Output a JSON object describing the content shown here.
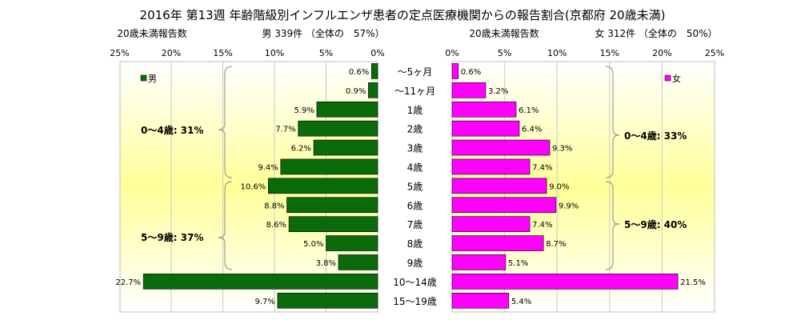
{
  "colors": {
    "male": "#0b6b0b",
    "female": "#ff00ff",
    "grid": "#c8c8c8",
    "panel_edge": "#ffffff",
    "panel_center": "#ffff99"
  },
  "chart_data": {
    "type": "bar",
    "orientation": "horizontal-butterfly",
    "title": "2016年 第13週 年齢階級別インフルエンザ患者の定点医療機関からの報告割合(京都府 20歳未満)",
    "categories": [
      "〜5ヶ月",
      "〜11ヶ月",
      "1歳",
      "2歳",
      "3歳",
      "4歳",
      "5歳",
      "6歳",
      "7歳",
      "8歳",
      "9歳",
      "10〜14歳",
      "15〜19歳"
    ],
    "series": [
      {
        "name": "男",
        "header_label": "20歳未満報告数",
        "header_summary": "男 339件 （全体の　57%）",
        "values": [
          0.6,
          0.9,
          5.9,
          7.7,
          6.2,
          9.4,
          10.6,
          8.8,
          8.6,
          5.0,
          3.8,
          22.7,
          9.7
        ],
        "labels": [
          "0.6%",
          "0.9%",
          "5.9%",
          "7.7%",
          "6.2%",
          "9.4%",
          "10.6%",
          "8.8%",
          "8.6%",
          "5.0%",
          "3.8%",
          "22.7%",
          "9.7%"
        ]
      },
      {
        "name": "女",
        "header_label": "20歳未満報告数",
        "header_summary": "女 312件 （全体の　50%）",
        "values": [
          0.6,
          3.2,
          6.1,
          6.4,
          9.3,
          7.4,
          9.0,
          9.9,
          7.4,
          8.7,
          5.1,
          21.5,
          5.4
        ],
        "labels": [
          "0.6%",
          "3.2%",
          "6.1%",
          "6.4%",
          "9.3%",
          "7.4%",
          "9.0%",
          "9.9%",
          "7.4%",
          "8.7%",
          "5.1%",
          "21.5%",
          "5.4%"
        ]
      }
    ],
    "xlim": [
      0,
      25
    ],
    "ticks": [
      25,
      20,
      15,
      10,
      5,
      0
    ],
    "tick_labels": [
      "25%",
      "20%",
      "15%",
      "10%",
      "5%",
      "0%"
    ],
    "grid": true,
    "legend": {
      "male_placement": "top-left",
      "female_placement": "top-right"
    },
    "annotations": {
      "male": [
        "0〜4歳: 31%",
        "5〜9歳: 37%"
      ],
      "female": [
        "0〜4歳: 33%",
        "5〜9歳: 40%"
      ]
    }
  }
}
